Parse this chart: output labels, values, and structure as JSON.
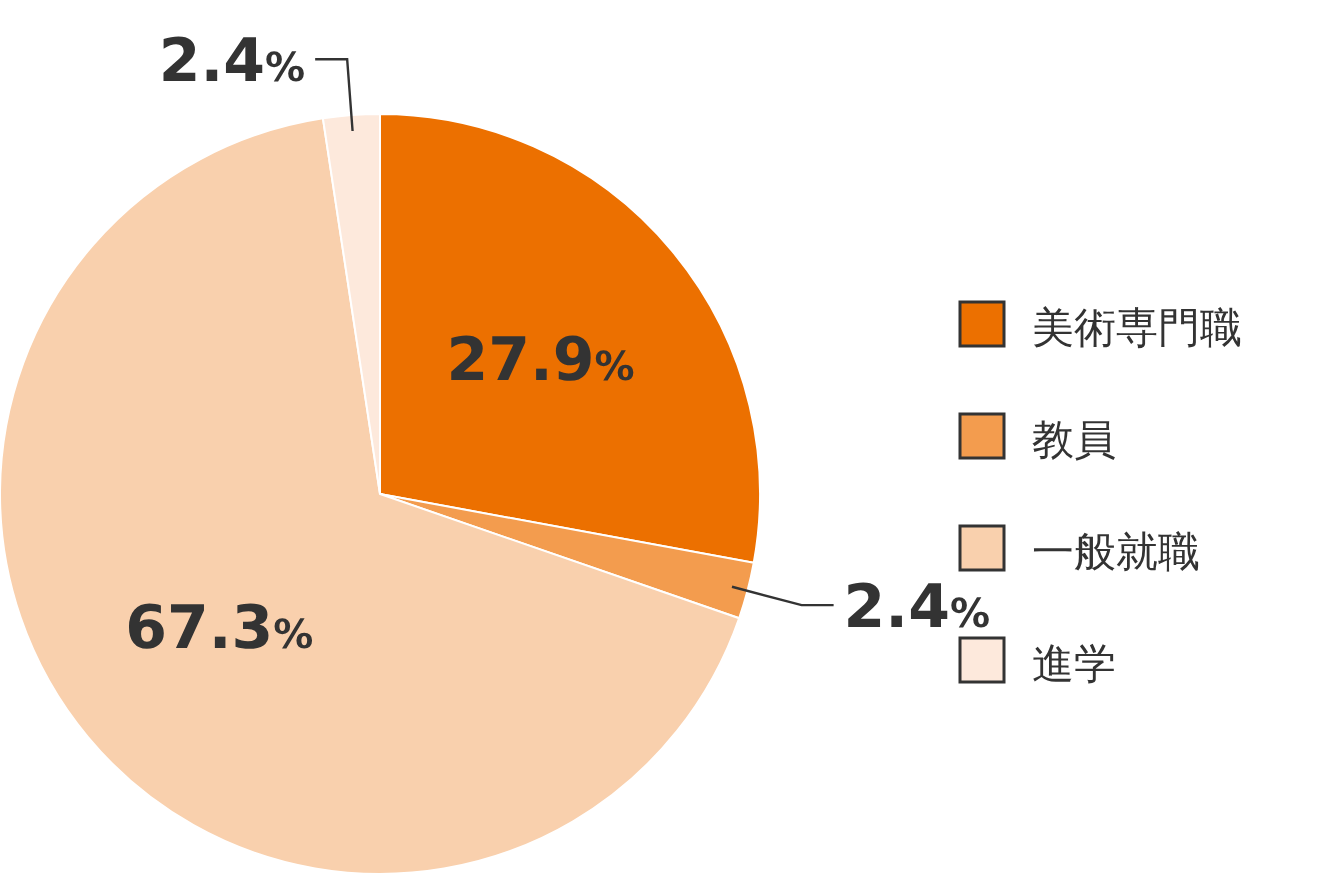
{
  "chart_data": {
    "type": "pie",
    "categories": [
      "美術専門職",
      "教員",
      "一般就職",
      "進学"
    ],
    "values": [
      27.9,
      2.4,
      67.3,
      2.4
    ],
    "colors": [
      "#ec7000",
      "#f39c4e",
      "#f9d0ad",
      "#fde9dc"
    ],
    "value_labels": [
      "27.9%",
      "2.4%",
      "67.3%",
      "2.4%"
    ],
    "legend": "right"
  }
}
